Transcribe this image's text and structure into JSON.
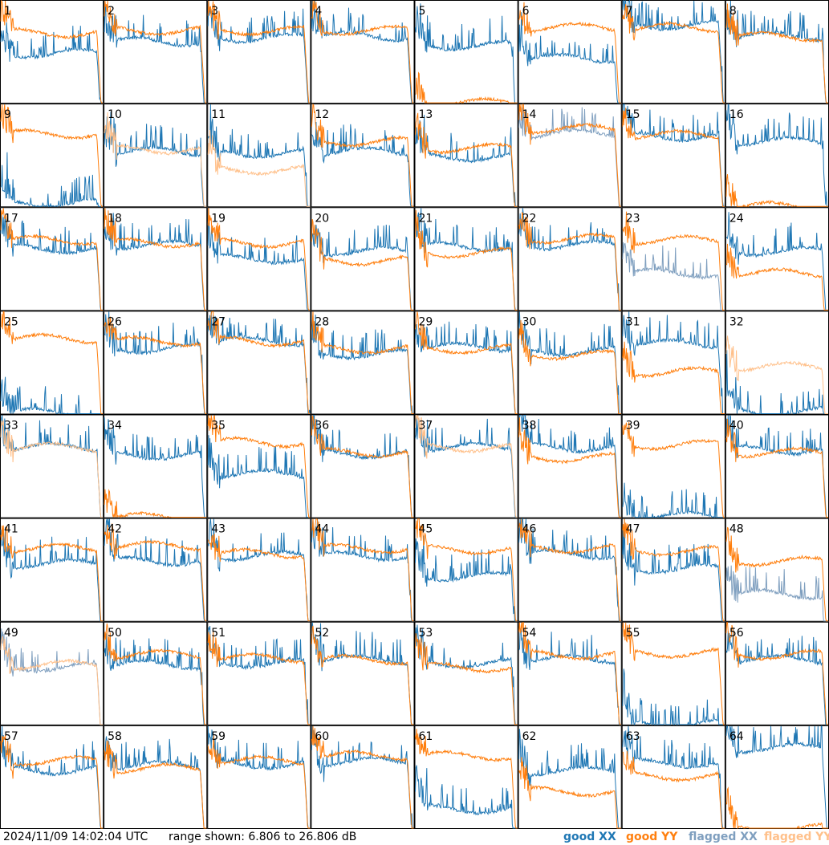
{
  "footer": {
    "timestamp": "2024/11/09 14:02:04 UTC",
    "range": "range shown: 6.806 to 26.806 dB"
  },
  "legend": {
    "good_xx": "good XX",
    "good_yy": "good YY",
    "flagged_xx": "flagged XX",
    "flagged_yy": "flagged YY"
  },
  "colors": {
    "good_xx": "#1f77b4",
    "good_yy": "#ff7f0e",
    "flagged_xx": "#7f9fbf",
    "flagged_yy": "#ffc08a"
  },
  "chart_data": {
    "type": "line",
    "panels": 64,
    "ylim": [
      6.806,
      26.806
    ],
    "units": "dB",
    "grid_layout": "8x8",
    "labels": [
      "1",
      "2",
      "3",
      "4",
      "5",
      "6",
      "7",
      "8",
      "9",
      "10",
      "11",
      "12",
      "13",
      "14",
      "15",
      "16",
      "17",
      "18",
      "19",
      "20",
      "21",
      "22",
      "23",
      "24",
      "25",
      "26",
      "27",
      "28",
      "29",
      "30",
      "31",
      "32",
      "33",
      "34",
      "35",
      "36",
      "37",
      "38",
      "39",
      "40",
      "41",
      "42",
      "43",
      "44",
      "45",
      "46",
      "47",
      "48",
      "49",
      "50",
      "51",
      "52",
      "53",
      "54",
      "55",
      "56",
      "57",
      "58",
      "59",
      "60",
      "61",
      "62",
      "63",
      "64"
    ],
    "flags": {
      "xx_flagged": [
        14,
        23,
        48,
        49
      ],
      "yy_flagged": [
        10,
        11,
        32,
        33,
        37,
        49
      ]
    },
    "series_levels_db": {
      "xx": [
        16.5,
        18.8,
        19.5,
        19.8,
        18.0,
        15.5,
        22.0,
        19.8,
        7.5,
        17.5,
        17.2,
        17.5,
        16.5,
        21.0,
        20.5,
        19.5,
        18.8,
        19.5,
        16.8,
        18.3,
        19.2,
        19.5,
        14.0,
        18.3,
        7.0,
        19.5,
        21.0,
        18.5,
        19.8,
        19.0,
        20.5,
        7.2,
        20.5,
        19.0,
        15.2,
        19.3,
        20.5,
        20.5,
        7.0,
        20.0,
        18.0,
        18.5,
        19.5,
        19.5,
        15.5,
        19.8,
        17.0,
        12.0,
        18.0,
        18.5,
        18.8,
        19.5,
        18.8,
        19.5,
        7.0,
        19.5,
        18.2,
        19.0,
        19.3,
        19.8,
        10.5,
        18.0,
        19.5,
        22.5
      ],
      "yy": [
        20.5,
        21.0,
        21.0,
        21.0,
        6.8,
        21.5,
        21.5,
        19.8,
        21.0,
        18.0,
        14.0,
        19.5,
        18.2,
        22.0,
        20.8,
        6.8,
        20.5,
        20.0,
        20.0,
        16.5,
        18.0,
        20.8,
        20.5,
        14.0,
        21.5,
        21.0,
        21.0,
        19.5,
        19.5,
        18.3,
        15.0,
        16.0,
        20.5,
        6.8,
        21.5,
        19.5,
        20.5,
        18.5,
        21.0,
        19.5,
        21.0,
        21.5,
        20.0,
        21.0,
        20.8,
        21.0,
        20.5,
        18.5,
        18.5,
        20.5,
        19.8,
        19.5,
        18.0,
        20.5,
        20.8,
        20.5,
        20.0,
        18.5,
        20.0,
        21.0,
        21.0,
        14.0,
        17.0,
        6.8
      ]
    }
  }
}
